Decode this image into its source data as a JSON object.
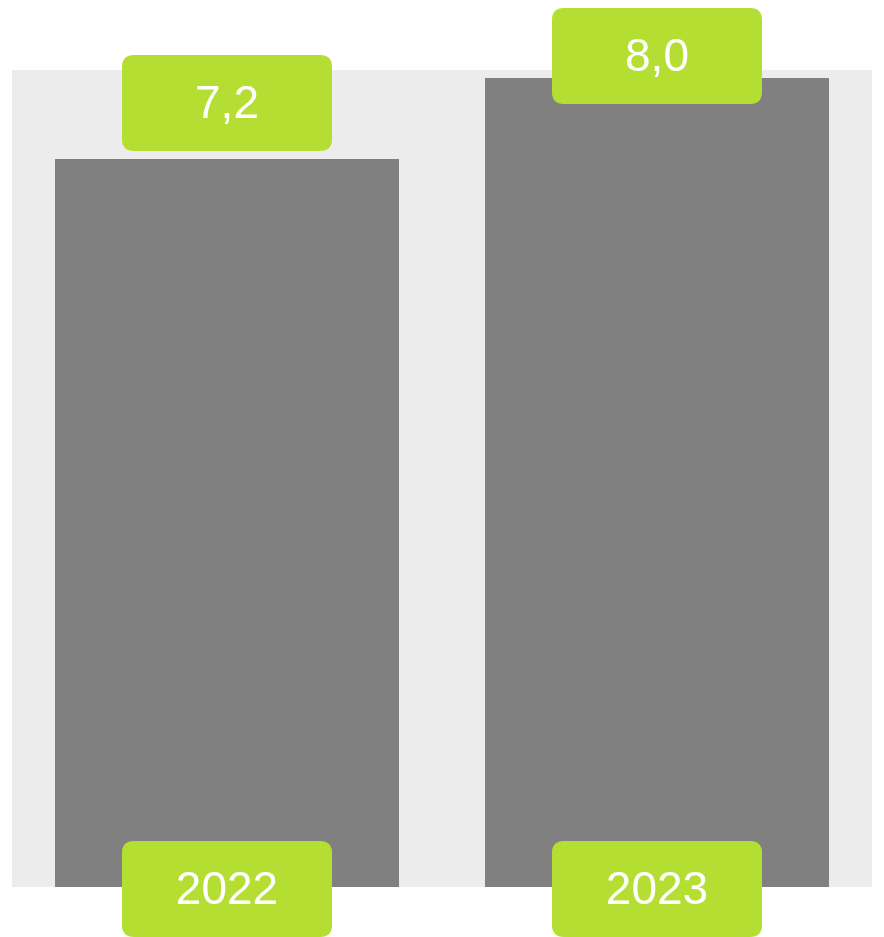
{
  "chart_data": {
    "type": "bar",
    "categories": [
      "2022",
      "2023"
    ],
    "values": [
      7.2,
      8.0
    ],
    "value_labels": [
      "7,2",
      "8,0"
    ],
    "color": "#808080",
    "ylim": [
      0,
      8
    ],
    "data_labels": true,
    "tick_labels": false,
    "grid": false
  }
}
